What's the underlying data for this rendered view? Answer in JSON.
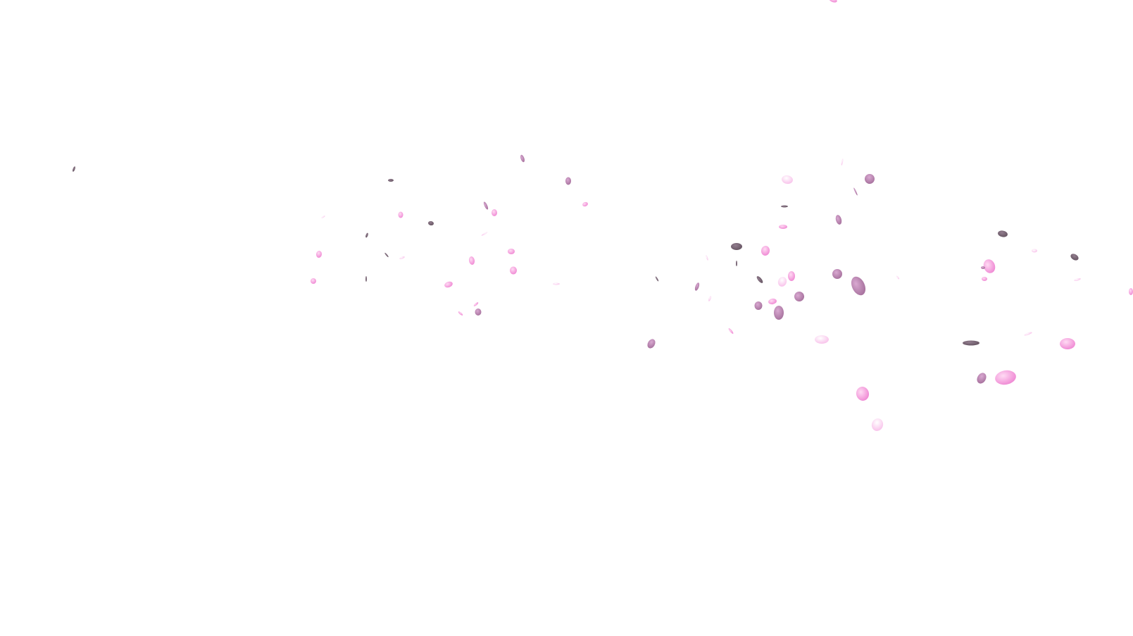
{
  "scene": {
    "background_color": "#ffffff",
    "effect": "falling-sakura-petals",
    "petal_colors": {
      "pink": "#f08fd6",
      "light_pink": "#f9c2ea",
      "mauve": "#b07aa6",
      "dark": "#6e5a6a"
    }
  }
}
